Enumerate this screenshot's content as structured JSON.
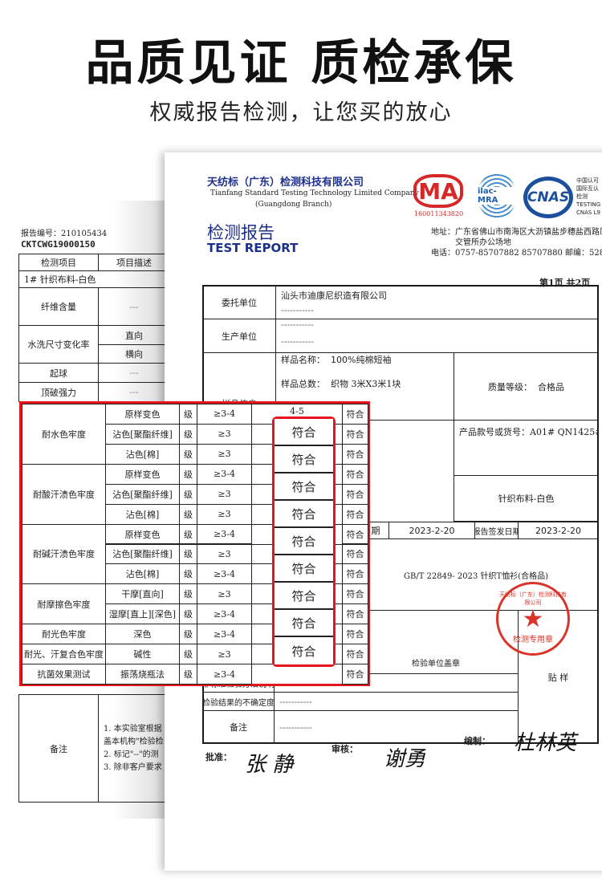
{
  "header": {
    "title": "品质见证 质检承保",
    "subtitle": "权威报告检测，让您买的放心"
  },
  "left_doc": {
    "report_no_label": "报告编号：210105434",
    "report_code": "CKTCWG19000150",
    "col_item": "检测项目",
    "col_desc": "项目描述",
    "sample": "1#   针织布料-白色",
    "rows": [
      {
        "item": "纤维含量",
        "desc": "---"
      },
      {
        "item": "水洗尺寸变化率",
        "desc": [
          "直向",
          "横向"
        ]
      },
      {
        "item": "起球",
        "desc": "---"
      },
      {
        "item": "顶破强力",
        "desc": "---"
      }
    ],
    "remark_label": "备注",
    "remark_lines": [
      "1.  本实验室根据",
      "盖本机构\"检验检",
      "2.  标记\"--\"的测",
      "3.  除非客户要求"
    ]
  },
  "right_doc": {
    "company_cn": "天纺标（广东）检测科技有限公司",
    "company_en": "Tianfang Standard Testing Technology Limited Company",
    "company_branch": "(Guangdong Branch)",
    "logos": {
      "ma": "MA",
      "ma_no": "160011343820",
      "ilac": "ilac-MRA",
      "cnas": "CNAS",
      "cnas_side": [
        "中国认可",
        "国际互认",
        "检测",
        "TESTING",
        "CNAS L9"
      ]
    },
    "report_title_cn": "检测报告",
    "report_title_en": "TEST REPORT",
    "address": "地址：广东省佛山市南海区大沥镇盐步穗盐西路原盐",
    "address2": "交管所办公场地",
    "phone": "电话：0757-85707882 85707880   邮编：528247",
    "page": "第1页   共2页",
    "client_label": "委托单位",
    "client_value": "汕头市迪康尼织造有限公司",
    "dashes": "-----------",
    "producer_label": "生产单位",
    "sample_label": "样品信息",
    "sample_name_label": "样品名称：",
    "sample_name": "100%纯棉短袖",
    "sample_count_label": "样品总数：",
    "sample_count": "织物 3米X3米1块",
    "quality_label": "质量等级：",
    "quality": "合格品",
    "product_no": "产品款号或货号：A01# QN1425#",
    "fabric": "针织布料-白色",
    "date_label": "日期",
    "date": "2023-2-20",
    "issue_label": "报告签发日期",
    "issue_date": "2023-2-20",
    "standard": "GB/T 22849- 2023 针织T恤衫(合格品)",
    "seal_label": "检验单位盖章",
    "stamp_ring": "天纺标（广东）检测科技有限公司",
    "stamp_text": "检测专用章",
    "nonstd_label": "非标准检验方法说明",
    "uncert_label": "检验结果的不确定度",
    "remark_label": "备注",
    "paste_label": "贴  样",
    "approve_label": "批准：",
    "approve_sig": "张 静",
    "review_label": "审核：",
    "review_sig": "谢勇",
    "prepare_label": "编制：",
    "prepare_sig": "杜林英"
  },
  "results": {
    "unit": "级",
    "first_result": "4-5",
    "conform": "符合",
    "groups": [
      {
        "name": "耐水色牢度",
        "rows": [
          {
            "item": "原样变色",
            "req": "≥3-4"
          },
          {
            "item": "沾色[聚酯纤维]",
            "req": "≥3"
          },
          {
            "item": "沾色[棉]",
            "req": "≥3"
          }
        ]
      },
      {
        "name": "耐酸汗渍色牢度",
        "rows": [
          {
            "item": "原样变色",
            "req": "≥3-4"
          },
          {
            "item": "沾色[聚酯纤维]",
            "req": "≥3"
          },
          {
            "item": "沾色[棉]",
            "req": "≥3"
          }
        ]
      },
      {
        "name": "耐碱汗渍色牢度",
        "rows": [
          {
            "item": "原样变色",
            "req": "≥3-4"
          },
          {
            "item": "沾色[聚酯纤维]",
            "req": "≥3"
          },
          {
            "item": "沾色[棉]",
            "req": "≥3-4"
          }
        ]
      },
      {
        "name": "耐摩擦色牢度",
        "rows": [
          {
            "item": "干摩[直向]",
            "req": "≥3"
          },
          {
            "item": "湿摩[直上][深色]",
            "req": "≥3-4"
          }
        ]
      },
      {
        "name": "耐光色牢度",
        "rows": [
          {
            "item": "深色",
            "req": "≥3-4"
          }
        ]
      },
      {
        "name": "耐光、汗复合色牢度",
        "rows": [
          {
            "item": "碱性",
            "req": "≥3"
          }
        ]
      },
      {
        "name": "抗菌效果测试",
        "rows": [
          {
            "item": "振荡烧瓶法",
            "req": "≥3-4"
          }
        ]
      }
    ],
    "highlight_count": 9
  },
  "colors": {
    "highlight_red": "#e8141b",
    "stamp_red": "#d9332a",
    "logo_blue": "#1c4f9c"
  }
}
